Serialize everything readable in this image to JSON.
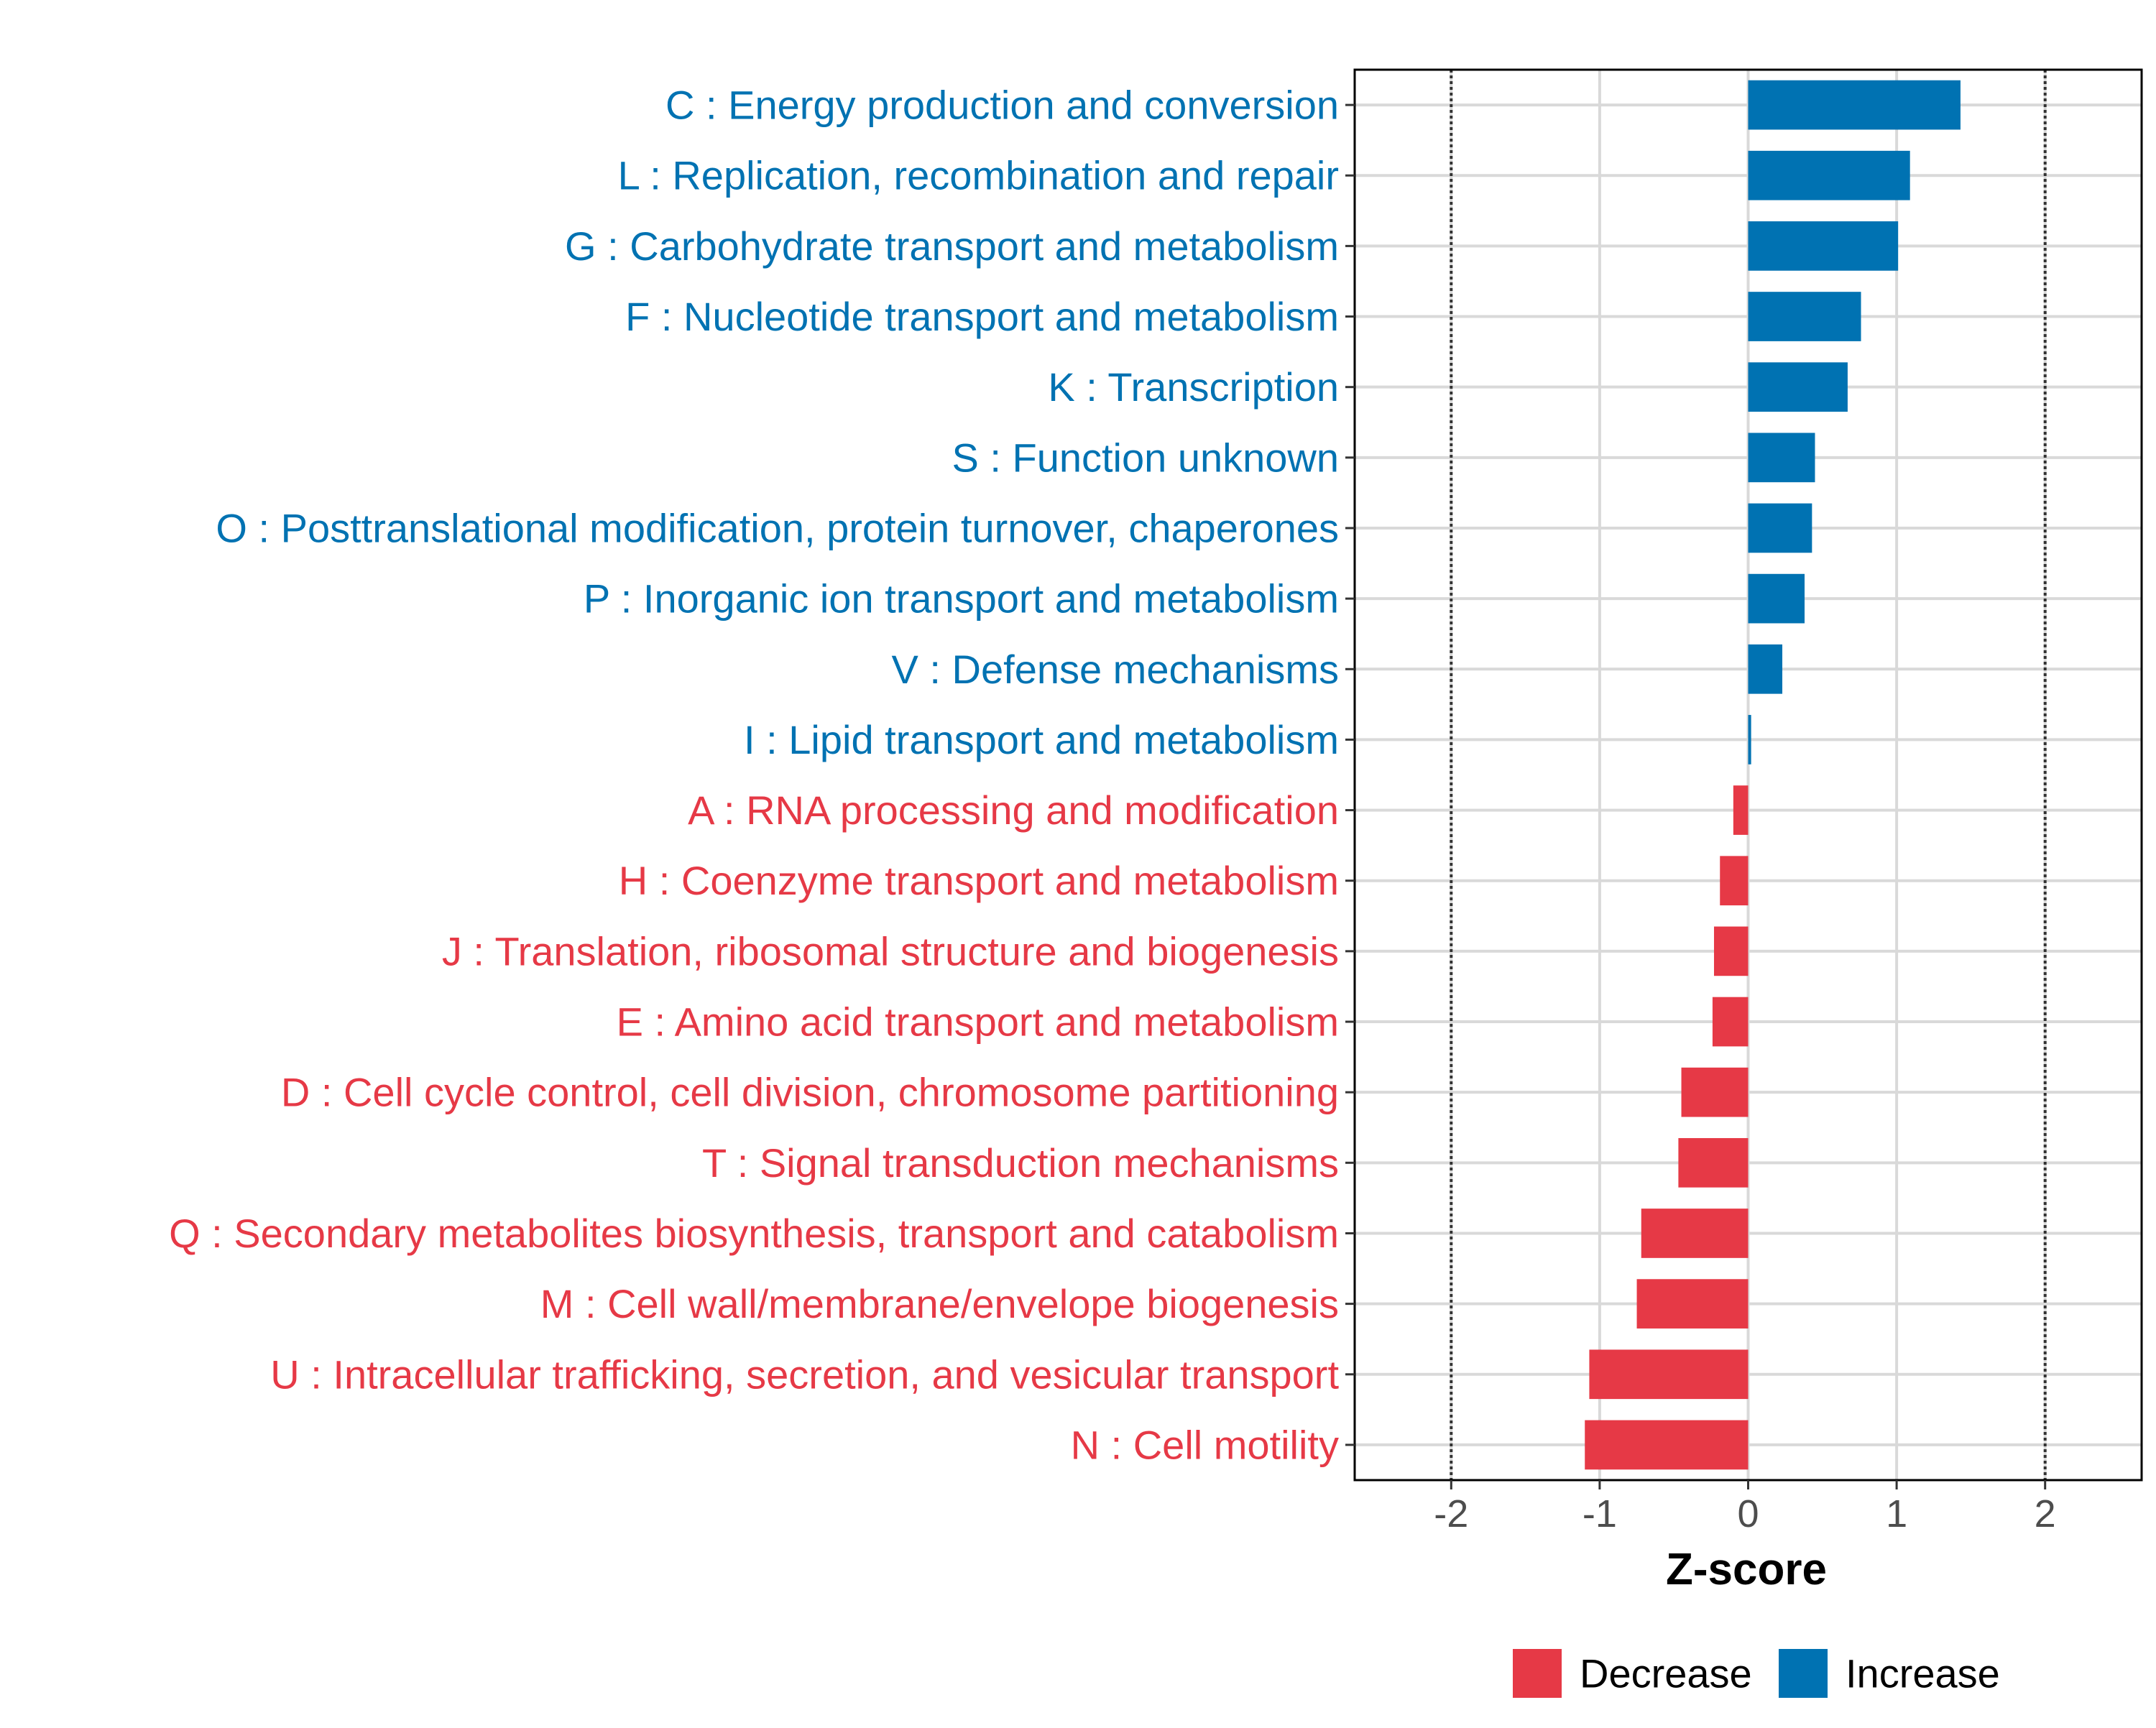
{
  "chart_data": {
    "type": "bar",
    "orientation": "horizontal",
    "title": "",
    "xlabel": "Z-score",
    "ylabel": "",
    "xlim": [
      -2.65,
      2.65
    ],
    "x_ticks": [
      -2,
      -1,
      0,
      1,
      2
    ],
    "x_tick_labels": [
      "-2",
      "-1",
      "0",
      "1",
      "2"
    ],
    "reference_lines": [
      -2,
      2
    ],
    "grid": true,
    "legend_position": "bottom",
    "colors": {
      "Increase": "#0072B2",
      "Decrease": "#E63946",
      "grid": "#D9D9D9",
      "axis_text": "#4D4D4D",
      "reference_line": "#333333"
    },
    "legend": [
      {
        "name": "Decrease",
        "color": "#E63946"
      },
      {
        "name": "Increase",
        "color": "#0072B2"
      }
    ],
    "categories": [
      "C : Energy production and conversion",
      "L : Replication, recombination and repair",
      "G : Carbohydrate transport and metabolism",
      "F : Nucleotide transport and metabolism",
      "K : Transcription",
      "S : Function unknown",
      "O : Posttranslational modification, protein turnover, chaperones",
      "P : Inorganic ion transport and metabolism",
      "V : Defense mechanisms",
      "I : Lipid transport and metabolism",
      "A : RNA processing and modification",
      "H : Coenzyme transport and metabolism",
      "J : Translation, ribosomal structure and biogenesis",
      "E : Amino acid transport and metabolism",
      "D : Cell cycle control, cell division, chromosome partitioning",
      "T : Signal transduction mechanisms",
      "Q : Secondary metabolites biosynthesis, transport and catabolism",
      "M : Cell wall/membrane/envelope biogenesis",
      "U : Intracellular trafficking, secretion, and vesicular transport",
      "N : Cell motility"
    ],
    "values": [
      1.43,
      1.09,
      1.01,
      0.76,
      0.67,
      0.45,
      0.43,
      0.38,
      0.23,
      0.02,
      -0.1,
      -0.19,
      -0.23,
      -0.24,
      -0.45,
      -0.47,
      -0.72,
      -0.75,
      -1.07,
      -1.1
    ],
    "groups": [
      "Increase",
      "Increase",
      "Increase",
      "Increase",
      "Increase",
      "Increase",
      "Increase",
      "Increase",
      "Increase",
      "Increase",
      "Decrease",
      "Decrease",
      "Decrease",
      "Decrease",
      "Decrease",
      "Decrease",
      "Decrease",
      "Decrease",
      "Decrease",
      "Decrease"
    ]
  }
}
